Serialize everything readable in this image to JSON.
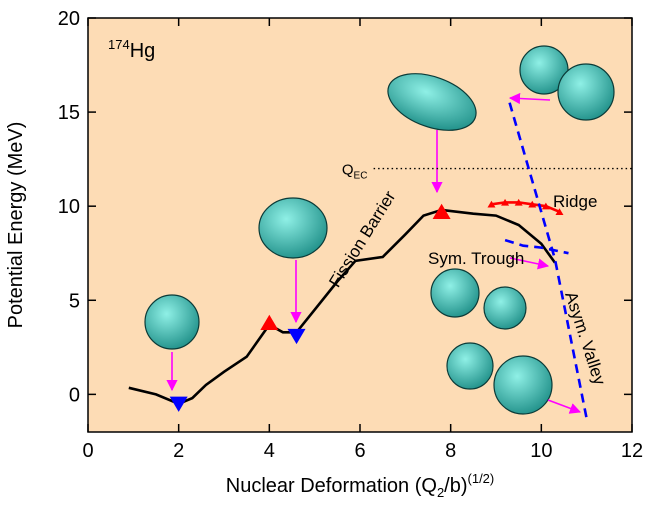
{
  "chart_data": {
    "type": "line",
    "x_label": {
      "main": "Nuclear Deformation (Q",
      "sub": "2",
      "rest": "/b)",
      "sup": "(1/2)"
    },
    "y_label": "Potential Energy (MeV)",
    "xlim": [
      0,
      12
    ],
    "xticks": [
      0,
      2,
      4,
      6,
      8,
      10,
      12
    ],
    "ylim": [
      -2,
      20
    ],
    "yticks": [
      0,
      5,
      10,
      15,
      20
    ],
    "background": "#fddcb5",
    "nucleus_label": {
      "sup": "174",
      "main": "Hg"
    },
    "reference_line": {
      "value": 12,
      "label_main": "Q",
      "label_sub": "EC"
    },
    "series": [
      {
        "color": "#000000",
        "style": "solid",
        "marker": "none",
        "x": [
          0.9,
          1.5,
          2.0,
          2.3,
          2.6,
          3.0,
          3.5,
          4.0,
          4.3,
          4.6,
          5.0,
          5.5,
          5.9,
          6.5,
          7.0,
          7.4,
          7.8,
          8.5,
          9.0,
          9.5,
          10.0,
          10.3
        ],
        "values": [
          0.35,
          0.0,
          -0.5,
          -0.2,
          0.5,
          1.2,
          2.0,
          3.7,
          3.3,
          3.3,
          4.5,
          6.0,
          7.1,
          7.3,
          8.5,
          9.5,
          9.8,
          9.6,
          9.5,
          9.0,
          8.0,
          7.0
        ]
      },
      {
        "color": "#0000ff",
        "style": "none",
        "marker": "down",
        "x": [
          2.0,
          4.6
        ],
        "values": [
          -0.5,
          3.1
        ]
      },
      {
        "color": "#ff0000",
        "style": "none",
        "marker": "up",
        "x": [
          4.0,
          7.8
        ],
        "values": [
          3.8,
          9.7
        ]
      },
      {
        "color": "#ff0000",
        "style": "solid",
        "marker": "small-up",
        "x": [
          8.9,
          9.2,
          9.5,
          9.8,
          10.1,
          10.4
        ],
        "values": [
          10.1,
          10.2,
          10.2,
          10.1,
          10.0,
          9.7
        ]
      },
      {
        "color": "#0000ff",
        "style": "dashed",
        "marker": "none",
        "x": [
          9.3,
          10.3,
          11.0
        ],
        "values": [
          15.5,
          7.2,
          -1.3
        ]
      },
      {
        "color": "#0000ff",
        "style": "dashed",
        "marker": "none",
        "x": [
          9.2,
          9.6,
          10.0,
          10.6
        ],
        "values": [
          8.2,
          7.9,
          7.8,
          7.5
        ]
      }
    ],
    "annotations": [
      "Fission Barrier",
      "Ridge",
      "Sym. Trough",
      "Asym. Valley"
    ]
  }
}
